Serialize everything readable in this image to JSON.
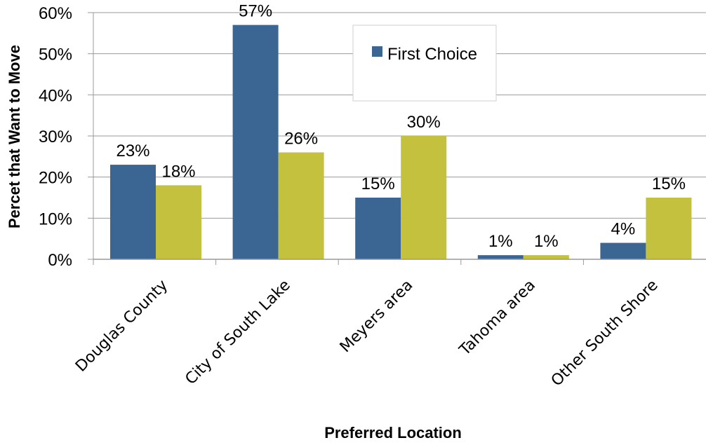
{
  "chart_data": {
    "type": "bar",
    "categories": [
      "Douglas County",
      "City of South Lake",
      "Meyers area",
      "Tahoma area",
      "Other South Shore"
    ],
    "series": [
      {
        "name": "First Choice",
        "color": "#3b6593",
        "values": [
          23,
          57,
          15,
          1,
          4
        ],
        "labels": [
          "23%",
          "57%",
          "15%",
          "1%",
          "4%"
        ]
      },
      {
        "color": "#c3c13d",
        "values": [
          18,
          26,
          30,
          1,
          15
        ],
        "labels": [
          "18%",
          "26%",
          "30%",
          "1%",
          "15%"
        ]
      }
    ],
    "ylim": [
      0,
      60
    ],
    "yticks": [
      0,
      10,
      20,
      30,
      40,
      50,
      60
    ],
    "ytick_labels": [
      "0%",
      "10%",
      "20%",
      "30%",
      "40%",
      "50%",
      "60%"
    ],
    "xlabel": "Preferred Location",
    "ylabel": "Percet that Want to Move",
    "grid": true,
    "legend_position": "top-center"
  }
}
